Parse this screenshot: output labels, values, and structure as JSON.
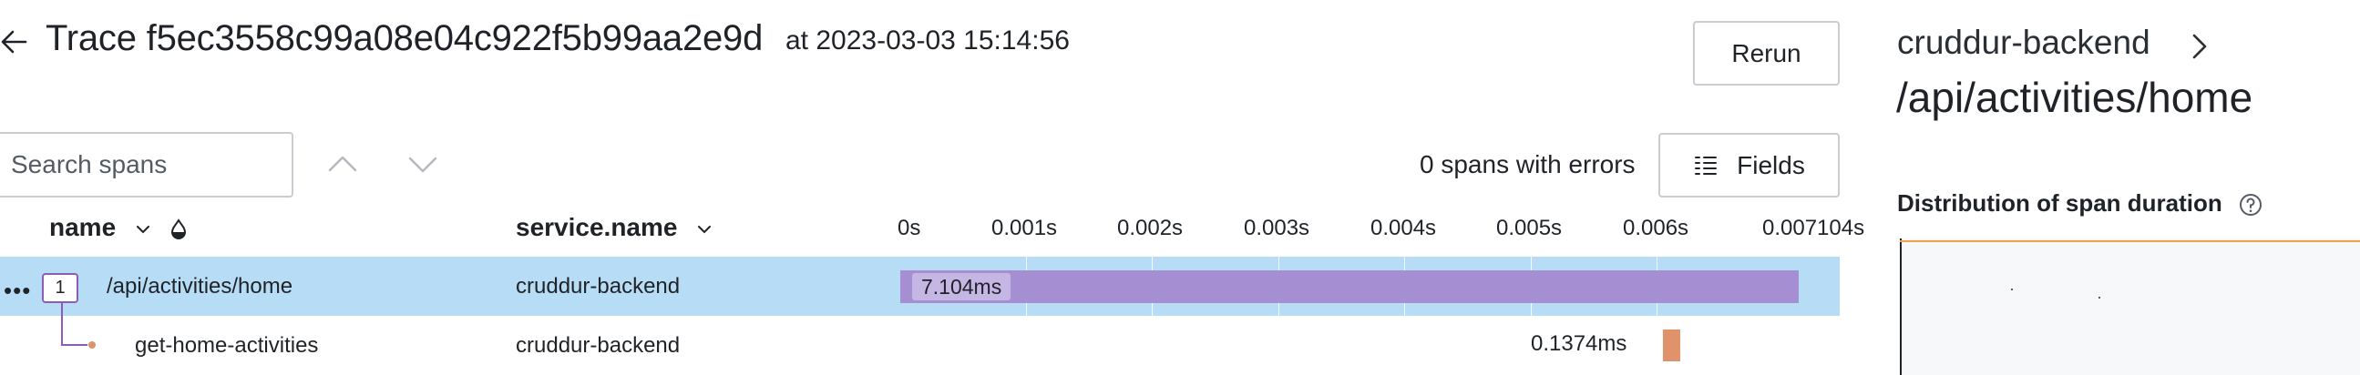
{
  "header": {
    "title": "Trace f5ec3558c99a08e04c922f5b99aa2e9d",
    "timestamp_prefix": "at",
    "timestamp": "2023-03-03 15:14:56",
    "rerun_label": "Rerun"
  },
  "toolbar": {
    "search_placeholder": "Search spans",
    "errors_text": "0 spans with errors",
    "fields_label": "Fields"
  },
  "table": {
    "columns": {
      "name": "name",
      "service": "service.name"
    },
    "timeline_ticks": [
      "0s",
      "0.001s",
      "0.002s",
      "0.003s",
      "0.004s",
      "0.005s",
      "0.006s",
      "0.007104s"
    ],
    "timeline_max_ms": 7.104,
    "rows": [
      {
        "child_count": "1",
        "name": "/api/activities/home",
        "service": "cruddur-backend",
        "start_ms": 0,
        "duration_ms": 7.104,
        "duration_label": "7.104ms",
        "selected": true
      },
      {
        "name": "get-home-activities",
        "service": "cruddur-backend",
        "start_ms": 6.03,
        "duration_ms": 0.1374,
        "duration_label": "0.1374ms",
        "selected": false
      }
    ]
  },
  "details": {
    "service": "cruddur-backend",
    "operation": "/api/activities/home",
    "distribution_title": "Distribution of span duration"
  },
  "colors": {
    "selected_row": "#b7dcf6",
    "root_bar": "#a58ed1",
    "child_bar": "#e0926a",
    "child_dot": "#e0926a",
    "chart_line": "#f0a04b"
  }
}
